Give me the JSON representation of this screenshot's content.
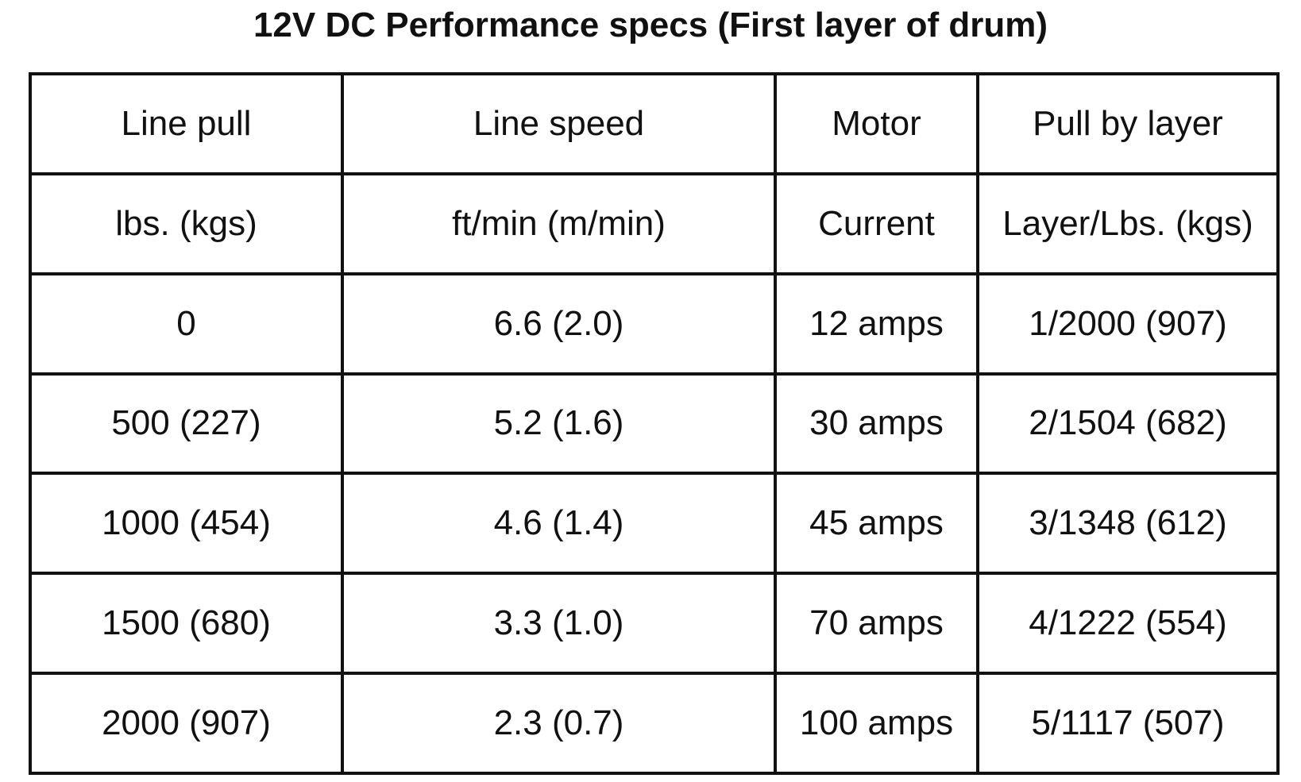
{
  "title": "12V DC Performance specs (First layer of drum)",
  "table": {
    "header_row_1": [
      "Line pull",
      "Line speed",
      "Motor",
      "Pull by layer"
    ],
    "header_row_2": [
      "lbs. (kgs)",
      "ft/min (m/min)",
      "Current",
      "Layer/Lbs. (kgs)"
    ],
    "rows": [
      [
        "0",
        "6.6 (2.0)",
        "12 amps",
        "1/2000 (907)"
      ],
      [
        "500 (227)",
        "5.2 (1.6)",
        "30 amps",
        "2/1504 (682)"
      ],
      [
        "1000 (454)",
        "4.6 (1.4)",
        "45 amps",
        "3/1348 (612)"
      ],
      [
        "1500 (680)",
        "3.3 (1.0)",
        "70 amps",
        "4/1222 (554)"
      ],
      [
        "2000 (907)",
        "2.3 (0.7)",
        "100 amps",
        "5/1117 (507)"
      ]
    ]
  }
}
